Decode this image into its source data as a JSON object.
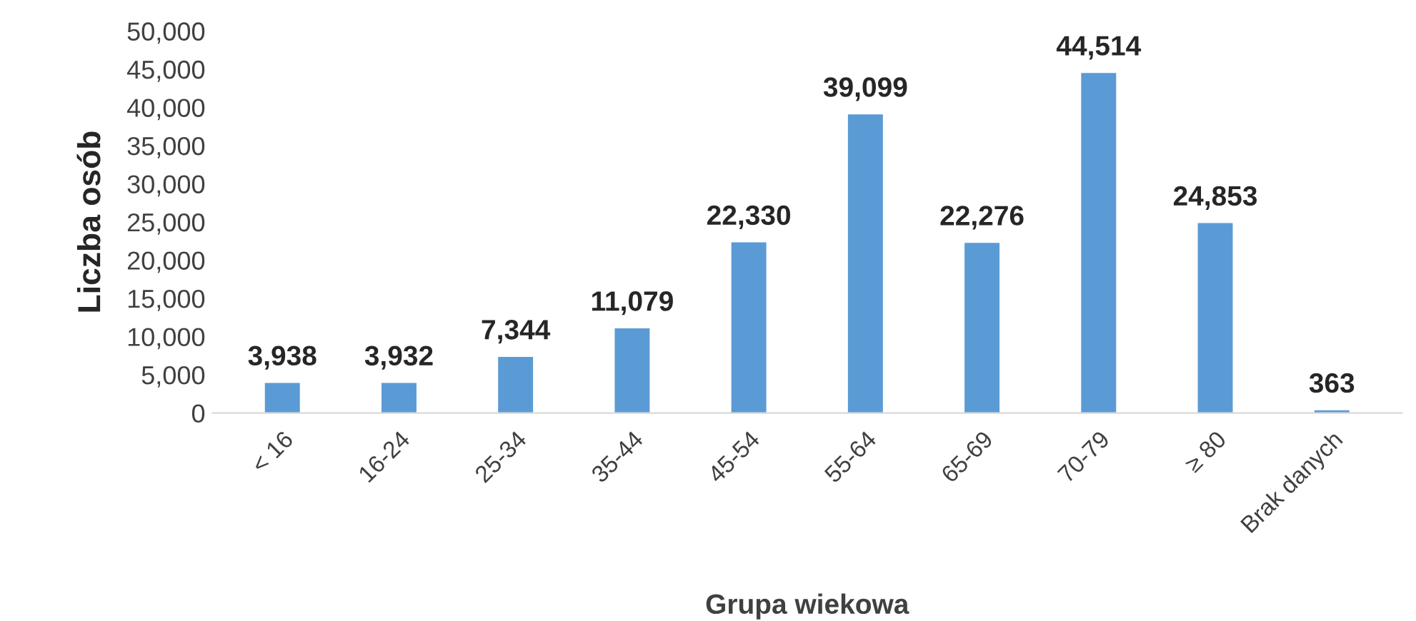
{
  "chart_data": {
    "type": "bar",
    "xlabel": "Grupa wiekowa",
    "ylabel": "Liczba osób",
    "categories": [
      "< 16",
      "16-24",
      "25-34",
      "35-44",
      "45-54",
      "55-64",
      "65-69",
      "70-79",
      "≥ 80",
      "Brak danych"
    ],
    "values": [
      3938,
      3932,
      7344,
      11079,
      22330,
      39099,
      22276,
      44514,
      24853,
      363
    ],
    "value_labels": [
      "3,938",
      "3,932",
      "7,344",
      "11,079",
      "22,330",
      "39,099",
      "22,276",
      "44,514",
      "24,853",
      "363"
    ],
    "color": "#5b9bd5",
    "ylim": [
      0,
      50000
    ],
    "yticks": [
      0,
      {
        "value": 5000,
        "label": "5,000"
      },
      {
        "value": 10000,
        "label": "10,000"
      },
      {
        "value": 15000,
        "label": "15,000"
      },
      {
        "value": 20000,
        "label": "20,000"
      },
      {
        "value": 25000,
        "label": "25,000"
      },
      {
        "value": 30000,
        "label": "30,000"
      },
      {
        "value": 35000,
        "label": "35,000"
      },
      {
        "value": 40000,
        "label": "40,000"
      },
      {
        "value": 45000,
        "label": "45,000"
      },
      {
        "value": 50000,
        "label": "50,000"
      }
    ],
    "grid": false
  }
}
